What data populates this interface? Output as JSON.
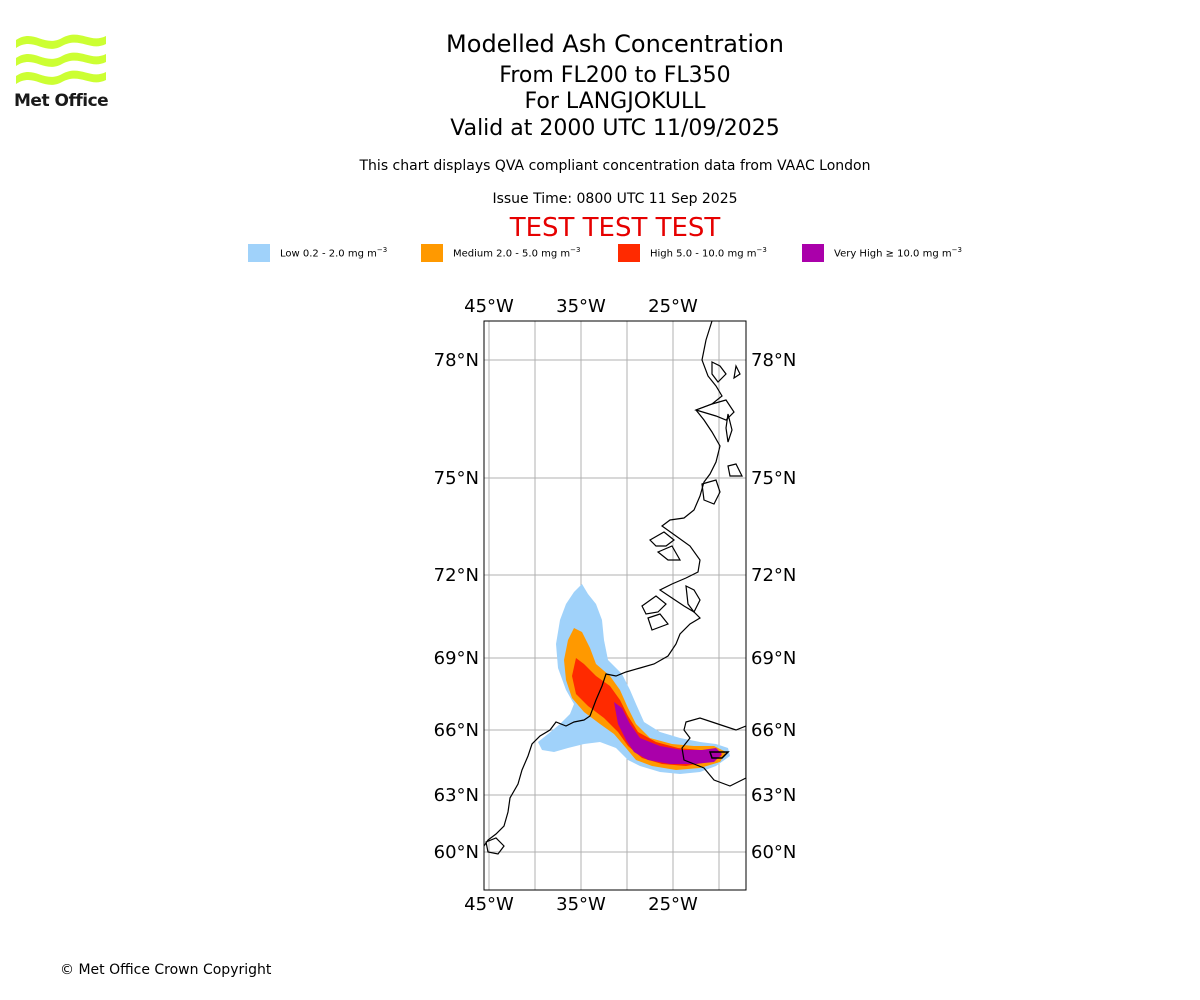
{
  "logo": {
    "text": "Met Office",
    "color": "#ccff33"
  },
  "header": {
    "title": "Modelled Ash Concentration",
    "levels": "From FL200 to FL350",
    "volcano": "For LANGJOKULL",
    "valid": "Valid at 2000 UTC 11/09/2025",
    "subtitle": "This chart displays QVA compliant concentration data from VAAC London",
    "issue": "Issue Time: 0800 UTC 11 Sep 2025",
    "test": "TEST TEST TEST"
  },
  "legend": [
    {
      "label": "Low 0.2 - 2.0 mg m",
      "color": "#a0d2fa"
    },
    {
      "label": "Medium 2.0 - 5.0 mg m",
      "color": "#ff9900"
    },
    {
      "label": "High 5.0 - 10.0 mg m",
      "color": "#ff2a00"
    },
    {
      "label": "Very High ≥ 10.0 mg m",
      "color": "#aa00aa"
    }
  ],
  "legend_unit_exponent": "−3",
  "map": {
    "lon_ticks": [
      "45°W",
      "35°W",
      "25°W"
    ],
    "lat_ticks": [
      "78°N",
      "75°N",
      "72°N",
      "69°N",
      "66°N",
      "63°N",
      "60°N"
    ]
  },
  "footer": "© Met Office Crown Copyright"
}
